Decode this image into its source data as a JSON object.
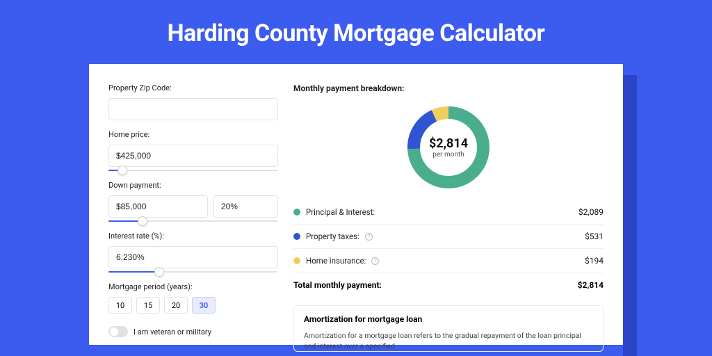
{
  "page_title": "Harding County Mortgage Calculator",
  "colors": {
    "page_bg": "#3c5cf0",
    "shadow": "#2a45c8",
    "card_bg": "#ffffff",
    "border": "#e2e2e2",
    "accent": "#3c5cf0"
  },
  "form": {
    "zip": {
      "label": "Property Zip Code:",
      "value": ""
    },
    "home_price": {
      "label": "Home price:",
      "value": "$425,000",
      "slider_pct": 8
    },
    "down_payment": {
      "label": "Down payment:",
      "value": "$85,000",
      "pct": "20%",
      "slider_pct": 20
    },
    "interest": {
      "label": "Interest rate (%):",
      "value": "6.230%",
      "slider_pct": 30
    },
    "period": {
      "label": "Mortgage period (years):",
      "options": [
        "10",
        "15",
        "20",
        "30"
      ],
      "selected": "30"
    },
    "veteran": {
      "label": "I am veteran or military",
      "on": false
    }
  },
  "breakdown": {
    "title": "Monthly payment breakdown:",
    "total_value": "$2,814",
    "total_sub": "per month",
    "donut": {
      "segments": [
        {
          "name": "principal_interest",
          "value": 2089,
          "color": "#4aae8e"
        },
        {
          "name": "property_taxes",
          "value": 531,
          "color": "#2f55d4"
        },
        {
          "name": "home_insurance",
          "value": 194,
          "color": "#f3cd5c"
        }
      ],
      "stroke_width": 18
    },
    "rows": [
      {
        "label": "Principal & Interest:",
        "color": "#4aae8e",
        "value": "$2,089",
        "info": false
      },
      {
        "label": "Property taxes:",
        "color": "#2f55d4",
        "value": "$531",
        "info": true
      },
      {
        "label": "Home insurance:",
        "color": "#f3cd5c",
        "value": "$194",
        "info": true
      }
    ],
    "total_label": "Total monthly payment:",
    "total_amount": "$2,814"
  },
  "amortization": {
    "title": "Amortization for mortgage loan",
    "text": "Amortization for a mortgage loan refers to the gradual repayment of the loan principal and interest over a specified"
  }
}
